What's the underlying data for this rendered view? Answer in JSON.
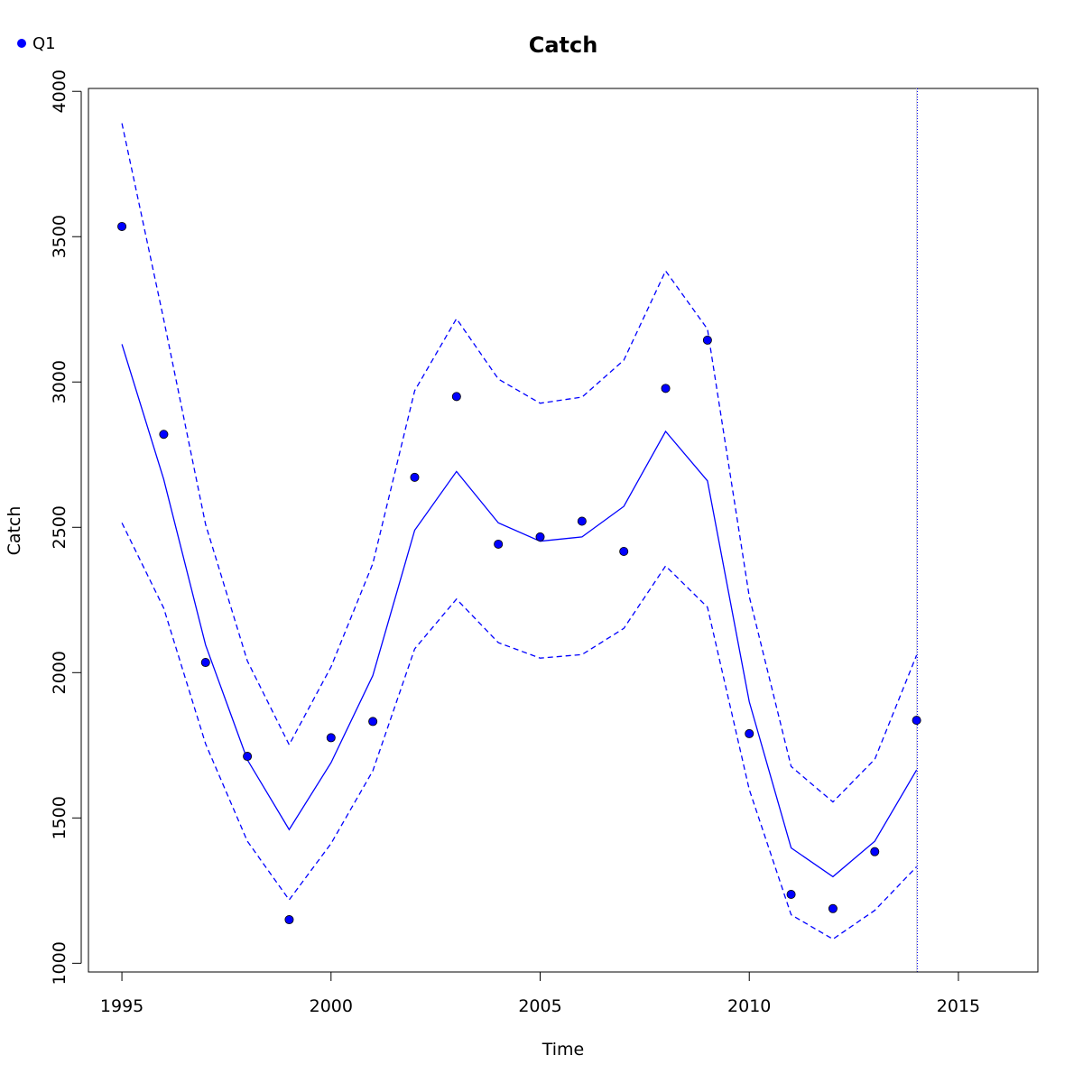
{
  "chart_data": {
    "type": "line",
    "title": "Catch",
    "xlabel": "Time",
    "ylabel": "Catch",
    "xlim": [
      1994.2,
      2016.9
    ],
    "ylim": [
      970,
      4010
    ],
    "x_ticks": [
      1995,
      2000,
      2005,
      2010,
      2015
    ],
    "y_ticks": [
      1000,
      1500,
      2000,
      2500,
      3000,
      3500,
      4000
    ],
    "grid": false,
    "legend": {
      "position": "top-left",
      "entries": [
        "Q1"
      ]
    },
    "series": [
      {
        "name": "Q1",
        "kind": "observed",
        "color": "#0000ff",
        "x": [
          1995,
          1996,
          1997,
          1998,
          1999,
          2000,
          2001,
          2002,
          2003,
          2004,
          2005,
          2006,
          2007,
          2008,
          2009,
          2010,
          2011,
          2012,
          2013,
          2014
        ],
        "values": [
          3535,
          2820,
          2035,
          1712,
          1150,
          1776,
          1832,
          2672,
          2950,
          2442,
          2467,
          2521,
          2417,
          2978,
          3144,
          1790,
          1237,
          1188,
          1384,
          1836
        ]
      },
      {
        "kind": "fitted",
        "color": "#0000ff",
        "line": "solid",
        "x": [
          1995,
          1996,
          1997,
          1998,
          1999,
          2000,
          2001,
          2002,
          2003,
          2004,
          2005,
          2006,
          2007,
          2008,
          2009,
          2010,
          2011,
          2012,
          2013,
          2014
        ],
        "values": [
          3130,
          2665,
          2095,
          1700,
          1460,
          1690,
          1990,
          2490,
          2692,
          2515,
          2452,
          2467,
          2572,
          2830,
          2660,
          1900,
          1397,
          1298,
          1420,
          1665
        ]
      },
      {
        "kind": "upper_bound",
        "color": "#0000ff",
        "line": "dashed",
        "x": [
          1995,
          1996,
          1997,
          1998,
          1999,
          2000,
          2001,
          2002,
          2003,
          2004,
          2005,
          2006,
          2007,
          2008,
          2009,
          2010,
          2011,
          2012,
          2013,
          2014
        ],
        "values": [
          3890,
          3215,
          2510,
          2040,
          1752,
          2020,
          2375,
          2970,
          3218,
          3010,
          2927,
          2948,
          3075,
          3382,
          3182,
          2262,
          1677,
          1555,
          1702,
          2060
        ]
      },
      {
        "kind": "lower_bound",
        "color": "#0000ff",
        "line": "dashed",
        "x": [
          1995,
          1996,
          1997,
          1998,
          1999,
          2000,
          2001,
          2002,
          2003,
          2004,
          2005,
          2006,
          2007,
          2008,
          2009,
          2010,
          2011,
          2012,
          2013,
          2014
        ],
        "values": [
          2515,
          2222,
          1755,
          1420,
          1218,
          1412,
          1662,
          2082,
          2253,
          2103,
          2050,
          2062,
          2152,
          2367,
          2225,
          1598,
          1167,
          1083,
          1182,
          1332
        ]
      }
    ],
    "vertical_lines": [
      {
        "x": 2014,
        "color": "#d3d3d3"
      },
      {
        "x": 2014.02,
        "color": "#0000ff",
        "dotted": true
      }
    ]
  }
}
